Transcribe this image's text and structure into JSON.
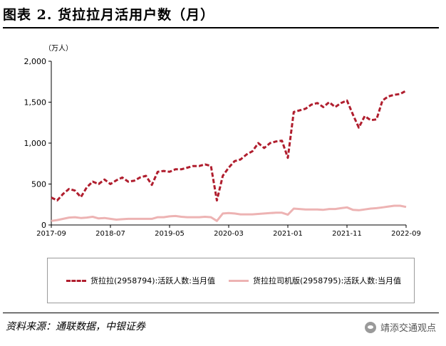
{
  "page": {
    "title": "图表 2. 货拉拉月活用户数（月）",
    "source": "资料来源：通联数据，中银证券",
    "watermark": "靖添交通观点",
    "watermark_icon": "wechat-icon"
  },
  "chart_data": {
    "type": "line",
    "title": "图表 2. 货拉拉月活用户数（月）",
    "unit_label": "（万人）",
    "ylim": [
      0,
      2000
    ],
    "yticks": [
      0,
      500,
      1000,
      1500,
      2000
    ],
    "ytick_labels": [
      "0",
      "500",
      "1,000",
      "1,500",
      "2,000"
    ],
    "x_start": "2017-09",
    "x_end": "2022-09",
    "xtick_labels": [
      "2017-09",
      "2018-07",
      "2019-05",
      "2020-03",
      "2021-01",
      "2021-11",
      "2022-09"
    ],
    "grid": false,
    "legend_position": "bottom",
    "series": [
      {
        "name": "货拉拉(2958794):活跃人数:当月值",
        "color": "#b01e2e",
        "style": "dashed",
        "values": [
          335,
          300,
          380,
          440,
          420,
          340,
          460,
          530,
          500,
          555,
          500,
          545,
          580,
          530,
          540,
          580,
          600,
          490,
          650,
          660,
          650,
          680,
          680,
          700,
          720,
          720,
          740,
          720,
          300,
          600,
          700,
          780,
          800,
          860,
          900,
          1000,
          940,
          1000,
          1020,
          1030,
          820,
          1380,
          1400,
          1420,
          1470,
          1490,
          1440,
          1500,
          1440,
          1490,
          1520,
          1350,
          1190,
          1330,
          1280,
          1290,
          1520,
          1570,
          1590,
          1600,
          1640
        ]
      },
      {
        "name": "货拉拉司机版(2958795):活跃人数:当月值",
        "color": "#edb3b3",
        "style": "solid",
        "values": [
          50,
          60,
          75,
          90,
          95,
          85,
          90,
          100,
          80,
          85,
          75,
          65,
          70,
          75,
          75,
          75,
          75,
          75,
          95,
          95,
          105,
          110,
          100,
          95,
          95,
          95,
          100,
          95,
          50,
          140,
          145,
          140,
          130,
          130,
          130,
          135,
          140,
          145,
          150,
          150,
          125,
          200,
          195,
          190,
          190,
          190,
          185,
          195,
          195,
          205,
          215,
          185,
          180,
          190,
          200,
          205,
          215,
          225,
          235,
          235,
          220
        ]
      }
    ]
  }
}
